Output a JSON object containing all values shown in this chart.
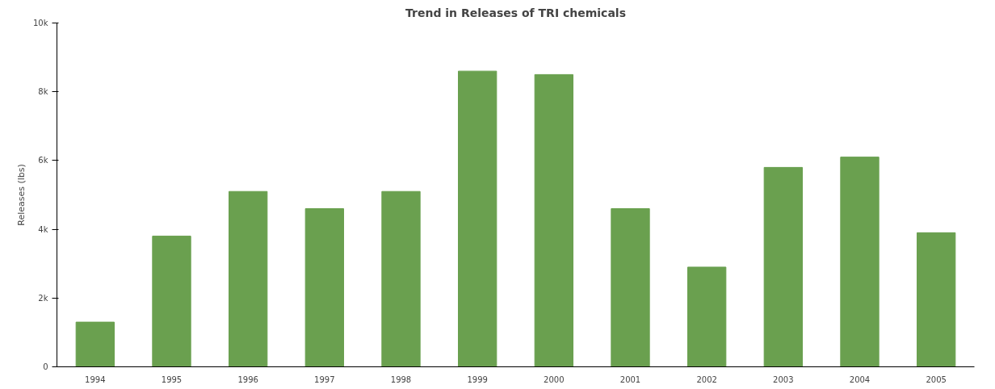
{
  "chart_data": {
    "type": "bar",
    "title": "Trend in Releases of TRI chemicals",
    "ylabel": "Releases (lbs)",
    "categories": [
      "1994",
      "1995",
      "1996",
      "1997",
      "1998",
      "1999",
      "2000",
      "2001",
      "2002",
      "2003",
      "2004",
      "2005"
    ],
    "values": [
      1300,
      3800,
      5100,
      4600,
      5100,
      8600,
      8500,
      4600,
      2900,
      5800,
      6100,
      3900
    ],
    "color": "#6aa04f",
    "ylim": [
      0,
      10000
    ],
    "yticks": [
      0,
      {
        "value": 2000,
        "label": "2k"
      },
      {
        "value": 4000,
        "label": "4k"
      },
      {
        "value": 6000,
        "label": "6k"
      },
      {
        "value": 8000,
        "label": "8k"
      },
      {
        "value": 10000,
        "label": "10k"
      }
    ],
    "grid": false
  }
}
